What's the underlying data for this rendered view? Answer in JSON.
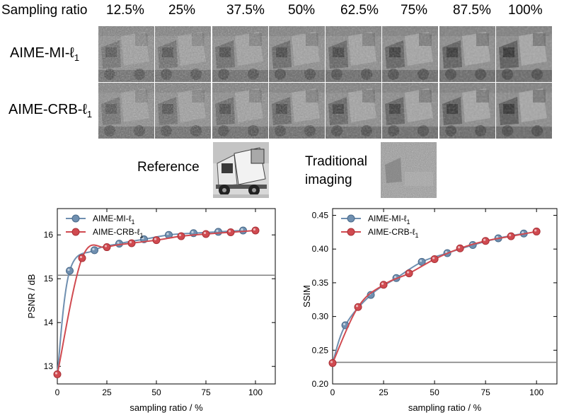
{
  "header": {
    "label": "Sampling ratio",
    "ratios": [
      "12.5%",
      "25%",
      "37.5%",
      "50%",
      "62.5%",
      "75%",
      "87.5%",
      "100%"
    ]
  },
  "rows": [
    {
      "label": "AIME-MI-ℓ",
      "sub": "1"
    },
    {
      "label": "AIME-CRB-ℓ",
      "sub": "1"
    }
  ],
  "reference": {
    "label": "Reference"
  },
  "traditional": {
    "line1": "Traditional",
    "line2": "imaging"
  },
  "colors": {
    "mi": "#6f8fb0",
    "crb": "#d04a50",
    "baseline": "#808080"
  },
  "chart_data": [
    {
      "type": "line",
      "xlabel": "sampling ratio / %",
      "ylabel": "PSNR / dB",
      "xlim": [
        0,
        110
      ],
      "ylim": [
        12.6,
        16.6
      ],
      "xticks": [
        0,
        25,
        50,
        75,
        100
      ],
      "yticks": [
        13,
        14,
        15,
        16
      ],
      "legend": "top-left",
      "baseline": 15.08,
      "series": [
        {
          "name": "AIME-MI-ℓ",
          "sub": "1",
          "color": "#6f8fb0",
          "x": [
            6.25,
            18.75,
            31.25,
            43.75,
            56.25,
            68.75,
            81.25,
            93.75
          ],
          "y": [
            15.18,
            15.65,
            15.8,
            15.9,
            16.0,
            16.04,
            16.07,
            16.1
          ]
        },
        {
          "name": "AIME-CRB-ℓ",
          "sub": "1",
          "color": "#d04a50",
          "x": [
            0,
            12.5,
            25,
            37.5,
            50,
            62.5,
            75,
            87.5,
            100
          ],
          "y": [
            12.82,
            15.47,
            15.72,
            15.81,
            15.88,
            15.97,
            16.02,
            16.06,
            16.1
          ]
        }
      ]
    },
    {
      "type": "line",
      "xlabel": "sampling ratio / %",
      "ylabel": "SSIM",
      "xlim": [
        0,
        110
      ],
      "ylim": [
        0.2,
        0.46
      ],
      "xticks": [
        0,
        25,
        50,
        75,
        100
      ],
      "yticks": [
        0.2,
        0.25,
        0.3,
        0.35,
        0.4,
        0.45
      ],
      "legend": "top-left",
      "baseline": 0.232,
      "series": [
        {
          "name": "AIME-MI-ℓ",
          "sub": "1",
          "color": "#6f8fb0",
          "x": [
            6.25,
            18.75,
            31.25,
            43.75,
            56.25,
            68.75,
            81.25,
            93.75
          ],
          "y": [
            0.287,
            0.332,
            0.357,
            0.381,
            0.394,
            0.406,
            0.416,
            0.423
          ]
        },
        {
          "name": "AIME-CRB-ℓ",
          "sub": "1",
          "color": "#d04a50",
          "x": [
            0,
            12.5,
            25,
            37.5,
            50,
            62.5,
            75,
            87.5,
            100
          ],
          "y": [
            0.231,
            0.314,
            0.347,
            0.364,
            0.385,
            0.401,
            0.412,
            0.419,
            0.426
          ]
        }
      ]
    }
  ]
}
